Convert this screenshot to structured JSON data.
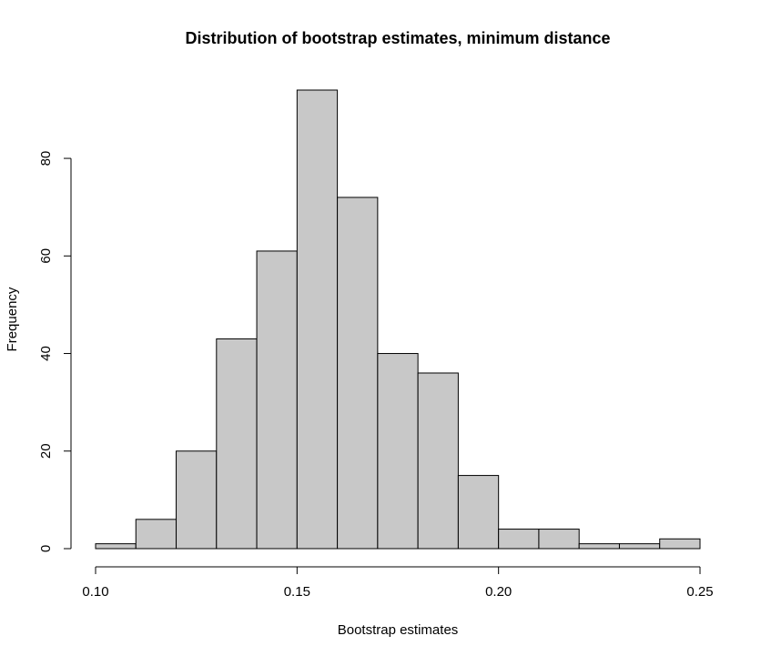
{
  "chart_data": {
    "type": "bar",
    "subtype": "histogram",
    "title": "Distribution of bootstrap estimates, minimum distance",
    "xlabel": "Bootstrap estimates",
    "ylabel": "Frequency",
    "bin_edges": [
      0.1,
      0.11,
      0.12,
      0.13,
      0.14,
      0.15,
      0.16,
      0.17,
      0.18,
      0.19,
      0.2,
      0.21,
      0.22,
      0.23,
      0.24,
      0.25
    ],
    "values": [
      1,
      6,
      20,
      43,
      61,
      94,
      72,
      40,
      36,
      15,
      4,
      4,
      1,
      1,
      2
    ],
    "xlim": [
      0.1,
      0.25
    ],
    "ylim": [
      0,
      94
    ],
    "x_ticks": [
      0.1,
      0.15,
      0.2,
      0.25
    ],
    "x_tick_labels": [
      "0.10",
      "0.15",
      "0.20",
      "0.25"
    ],
    "y_ticks": [
      0,
      20,
      40,
      60,
      80
    ],
    "y_tick_labels": [
      "0",
      "20",
      "40",
      "60",
      "80"
    ],
    "bar_fill": "#c8c8c8",
    "bar_stroke": "#000000",
    "grid": false,
    "legend": "none"
  }
}
